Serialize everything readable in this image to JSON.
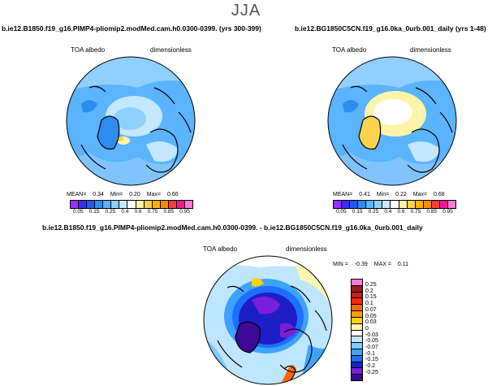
{
  "season": "JJA",
  "panels": [
    {
      "title": "b.ie12.B1850.f19_g16.PIMP4-pliomip2.modMed.cam.h0.0300-0399. (yrs 300-399)",
      "label_left": "TOA albedo",
      "label_right": "dimensionless",
      "mean_label": "MEAN=",
      "mean": "0.34",
      "min_label": "Min=",
      "min": "0.20",
      "max_label": "Max=",
      "max": "0.66"
    },
    {
      "title": "b.ie12.BG1850C5CN.f19_g16.0ka_0urb.001_daily (yrs 1-48)",
      "label_left": "TOA albedo",
      "label_right": "dimensionless",
      "mean_label": "MEAN=",
      "mean": "0.41",
      "min_label": "Min=",
      "min": "0.22",
      "max_label": "Max=",
      "max": "0.68"
    }
  ],
  "abs_colorbar": {
    "ticks": [
      "0.05",
      "0.15",
      "0.25",
      "0.4",
      "0.6",
      "0.75",
      "0.85",
      "0.95"
    ],
    "colors": [
      "#9b30ff",
      "#3a2dff",
      "#1e5aff",
      "#2c8cf0",
      "#5ab4ff",
      "#8fd0ff",
      "#c3e8ff",
      "#ffffff",
      "#fff4a8",
      "#ffd24d",
      "#ffb000",
      "#ff8c00",
      "#ff3c3c",
      "#ff1493",
      "#ff7ad5"
    ]
  },
  "diff_panel": {
    "title": "b.ie12.B1850.f19_g16.PIMP4-pliomip2.modMed.cam.h0.0300-0399. - b.ie12.BG1850C5CN.f19_g16.0ka_0urb.001_daily",
    "label_left": "TOA albedo",
    "label_right": "dimensionless",
    "min_label": "MIN =",
    "min": "-0.39",
    "max_label": "MAX =",
    "max": "0.11"
  },
  "diff_colorbar": {
    "labels": [
      "0.25",
      "0.2",
      "0.15",
      "0.1",
      "0.07",
      "0.05",
      "0.03",
      "0",
      "-0.03",
      "-0.05",
      "-0.07",
      "-0.1",
      "-0.15",
      "-0.2",
      "-0.25"
    ],
    "colors": [
      "#ff7ad5",
      "#9b1c1c",
      "#c81e1e",
      "#ff2a00",
      "#ff6a00",
      "#ff9e00",
      "#ffd200",
      "#fff6b0",
      "#ffffff",
      "#bfe6ff",
      "#7fcaff",
      "#3fa2ff",
      "#1e6eff",
      "#1e1ec8",
      "#7a1edc",
      "#3c0a96"
    ]
  }
}
